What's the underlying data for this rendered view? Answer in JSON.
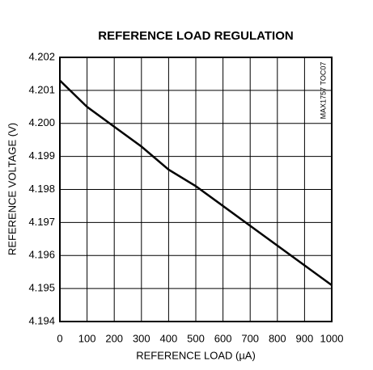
{
  "chart_data": {
    "type": "line",
    "title": "REFERENCE LOAD REGULATION",
    "xlabel": "REFERENCE LOAD (µA)",
    "ylabel": "REFERENCE VOLTAGE (V)",
    "annotation": "MAX1757 TOC07",
    "x": [
      0,
      100,
      200,
      300,
      400,
      500,
      600,
      700,
      800,
      900,
      1000
    ],
    "series": [
      {
        "name": "Reference voltage",
        "color": "#000000",
        "values": [
          4.2013,
          4.2005,
          4.1999,
          4.1993,
          4.1986,
          4.1981,
          4.1975,
          4.1969,
          4.1963,
          4.1957,
          4.1951
        ]
      }
    ],
    "xlim": [
      0,
      1000
    ],
    "xticks": [
      0,
      100,
      200,
      300,
      400,
      500,
      600,
      700,
      800,
      900,
      1000
    ],
    "ylim": [
      4.194,
      4.202
    ],
    "yticks": [
      4.194,
      4.195,
      4.196,
      4.197,
      4.198,
      4.199,
      {
        "value": 4.2,
        "label": "4.200"
      },
      4.201,
      4.202
    ],
    "grid": true
  }
}
